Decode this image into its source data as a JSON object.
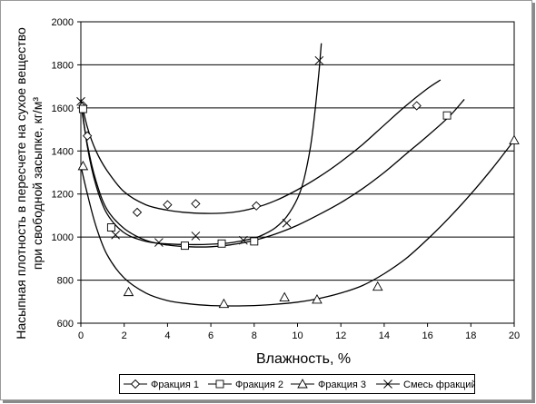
{
  "chart_data": {
    "type": "scatter",
    "title": "",
    "xlabel": "Влажность, %",
    "ylabel": "Насыпная плотность в пересчете на сухое вещество при свободной засыпке, кг/м³",
    "ylabel_lines": [
      "Насыпная плотность в пересчете на сухое вещество",
      "при свободной засыпке, кг/м³"
    ],
    "xlim": [
      0,
      20
    ],
    "ylim": [
      600,
      2000
    ],
    "xticks": [
      "0",
      "2",
      "4",
      "6",
      "8",
      "10",
      "12",
      "14",
      "16",
      "18",
      "20"
    ],
    "yticks": [
      "600",
      "800",
      "1000",
      "1200",
      "1400",
      "1600",
      "1800",
      "2000"
    ],
    "grid": "horizontal",
    "legend_position": "bottom",
    "series": [
      {
        "name": "Фракция 1",
        "marker": "diamond",
        "points": [
          [
            0.1,
            1610
          ],
          [
            0.3,
            1470
          ],
          [
            2.6,
            1115
          ],
          [
            4.0,
            1150
          ],
          [
            5.3,
            1155
          ],
          [
            8.1,
            1145
          ],
          [
            15.5,
            1610
          ]
        ],
        "curve": [
          [
            0.0,
            1640
          ],
          [
            0.3,
            1510
          ],
          [
            0.7,
            1400
          ],
          [
            1.2,
            1310
          ],
          [
            2.0,
            1210
          ],
          [
            3.0,
            1150
          ],
          [
            4.0,
            1125
          ],
          [
            5.0,
            1113
          ],
          [
            6.0,
            1110
          ],
          [
            7.0,
            1115
          ],
          [
            8.0,
            1135
          ],
          [
            9.0,
            1170
          ],
          [
            10.0,
            1220
          ],
          [
            11.0,
            1280
          ],
          [
            12.0,
            1350
          ],
          [
            13.0,
            1430
          ],
          [
            14.0,
            1520
          ],
          [
            15.0,
            1610
          ],
          [
            16.0,
            1690
          ],
          [
            16.6,
            1730
          ]
        ]
      },
      {
        "name": "Фракция 2",
        "marker": "square",
        "points": [
          [
            0.1,
            1595
          ],
          [
            1.4,
            1045
          ],
          [
            4.8,
            960
          ],
          [
            6.5,
            970
          ],
          [
            8.0,
            980
          ],
          [
            16.9,
            1565
          ]
        ],
        "curve": [
          [
            0.0,
            1620
          ],
          [
            0.3,
            1430
          ],
          [
            0.7,
            1260
          ],
          [
            1.2,
            1130
          ],
          [
            2.0,
            1040
          ],
          [
            3.0,
            985
          ],
          [
            4.0,
            963
          ],
          [
            5.0,
            955
          ],
          [
            6.0,
            955
          ],
          [
            7.0,
            965
          ],
          [
            8.0,
            985
          ],
          [
            9.0,
            1015
          ],
          [
            10.0,
            1055
          ],
          [
            11.0,
            1105
          ],
          [
            12.0,
            1160
          ],
          [
            13.0,
            1225
          ],
          [
            14.0,
            1300
          ],
          [
            15.0,
            1385
          ],
          [
            16.0,
            1470
          ],
          [
            17.0,
            1560
          ],
          [
            17.7,
            1640
          ]
        ]
      },
      {
        "name": "Фракция 3",
        "marker": "triangle",
        "points": [
          [
            0.1,
            1330
          ],
          [
            2.2,
            745
          ],
          [
            6.6,
            690
          ],
          [
            9.4,
            720
          ],
          [
            10.9,
            710
          ],
          [
            13.7,
            770
          ],
          [
            20.0,
            1450
          ]
        ],
        "curve": [
          [
            0.0,
            1330
          ],
          [
            0.3,
            1200
          ],
          [
            0.7,
            1050
          ],
          [
            1.2,
            920
          ],
          [
            2.0,
            810
          ],
          [
            3.0,
            740
          ],
          [
            4.0,
            705
          ],
          [
            5.0,
            690
          ],
          [
            6.0,
            682
          ],
          [
            7.0,
            680
          ],
          [
            8.0,
            682
          ],
          [
            9.0,
            688
          ],
          [
            10.0,
            698
          ],
          [
            11.0,
            715
          ],
          [
            12.0,
            740
          ],
          [
            13.0,
            775
          ],
          [
            14.0,
            830
          ],
          [
            15.0,
            900
          ],
          [
            16.0,
            990
          ],
          [
            17.0,
            1090
          ],
          [
            18.0,
            1200
          ],
          [
            19.0,
            1320
          ],
          [
            20.0,
            1450
          ]
        ]
      },
      {
        "name": "Смесь фракций",
        "marker": "x",
        "points": [
          [
            0.0,
            1630
          ],
          [
            1.6,
            1010
          ],
          [
            3.6,
            975
          ],
          [
            5.3,
            1005
          ],
          [
            7.5,
            985
          ],
          [
            9.5,
            1065
          ],
          [
            11.0,
            1820
          ]
        ],
        "curve": [
          [
            0.0,
            1640
          ],
          [
            0.3,
            1420
          ],
          [
            0.7,
            1240
          ],
          [
            1.2,
            1110
          ],
          [
            2.0,
            1020
          ],
          [
            3.0,
            980
          ],
          [
            4.0,
            968
          ],
          [
            5.0,
            965
          ],
          [
            6.0,
            967
          ],
          [
            7.0,
            975
          ],
          [
            8.0,
            995
          ],
          [
            8.5,
            1015
          ],
          [
            9.0,
            1045
          ],
          [
            9.5,
            1095
          ],
          [
            10.0,
            1180
          ],
          [
            10.3,
            1270
          ],
          [
            10.6,
            1420
          ],
          [
            10.8,
            1580
          ],
          [
            11.0,
            1780
          ],
          [
            11.1,
            1900
          ]
        ]
      }
    ]
  }
}
